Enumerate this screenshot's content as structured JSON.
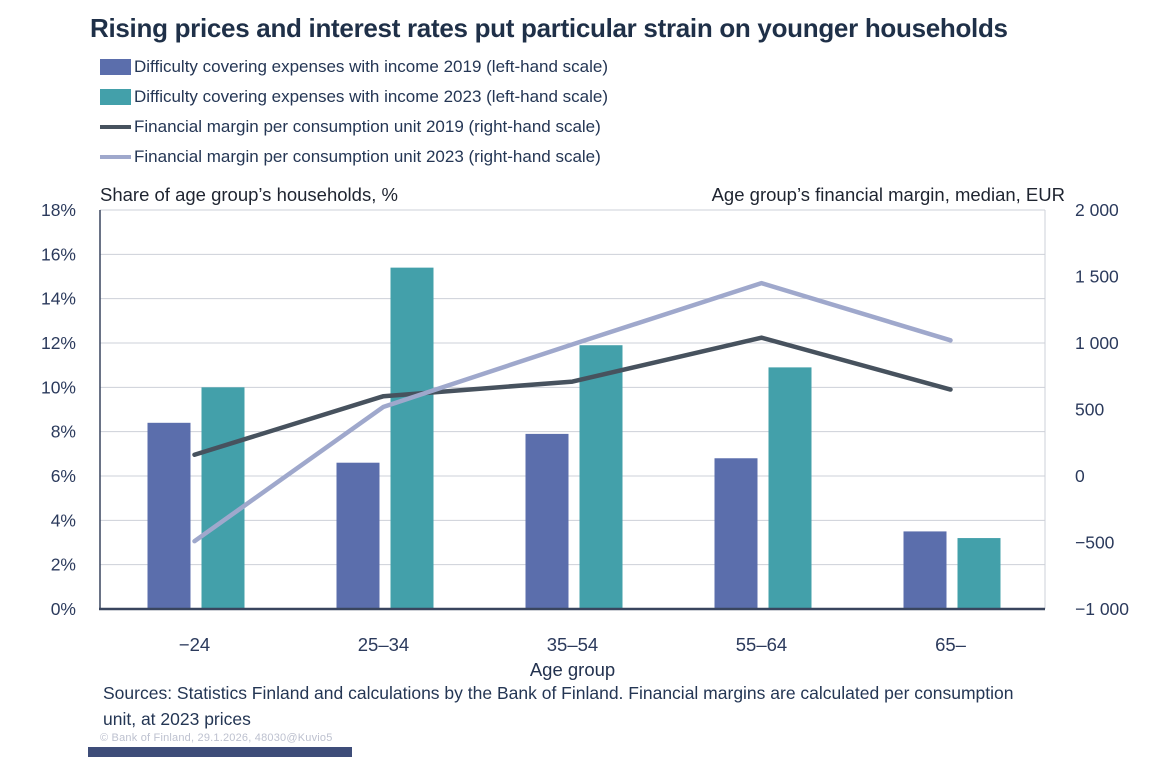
{
  "title": "Rising prices and interest rates put particular strain on younger households",
  "legend": [
    {
      "label": "Difficulty covering expenses with income 2019 (left-hand scale)",
      "swatch": "bar",
      "color": "#5B6EAC"
    },
    {
      "label": "Difficulty covering expenses with income 2023 (left-hand scale)",
      "swatch": "bar",
      "color": "#43A0AA"
    },
    {
      "label": "Financial margin per consumption unit 2019 (right-hand scale)",
      "swatch": "line",
      "color": "#47525E"
    },
    {
      "label": "Financial margin per consumption unit 2023 (right-hand scale)",
      "swatch": "line",
      "color": "#9FA8CC"
    }
  ],
  "chart_data": {
    "type": "combo-bar-line",
    "title": "Rising prices and interest rates put particular strain on younger households",
    "categories": [
      "−24",
      "25–34",
      "35–54",
      "55–64",
      "65–"
    ],
    "xlabel": "Age group",
    "grid": true,
    "legend_position": "top-left",
    "left_axis": {
      "label": "Share of age group’s households, %",
      "min": 0,
      "max": 18,
      "ticks": [
        {
          "label": "18%",
          "value": 18
        },
        {
          "label": "16%",
          "value": 16
        },
        {
          "label": "14%",
          "value": 14
        },
        {
          "label": "12%",
          "value": 12
        },
        {
          "label": "10%",
          "value": 10
        },
        {
          "label": "8%",
          "value": 8
        },
        {
          "label": "6%",
          "value": 6
        },
        {
          "label": "4%",
          "value": 4
        },
        {
          "label": "2%",
          "value": 2
        },
        {
          "label": "0%",
          "value": 0
        }
      ]
    },
    "right_axis": {
      "label": "Age group’s financial margin, median, EUR",
      "min": -1000,
      "max": 2000,
      "ticks": [
        {
          "label": "2 000",
          "value": 2000
        },
        {
          "label": "1 500",
          "value": 1500
        },
        {
          "label": "1 000",
          "value": 1000
        },
        {
          "label": "500",
          "value": 500
        },
        {
          "label": "0",
          "value": 0
        },
        {
          "label": "−500",
          "value": -500
        },
        {
          "label": "−1 000",
          "value": -1000
        }
      ]
    },
    "series": [
      {
        "name": "Difficulty covering expenses with income 2019",
        "type": "bar",
        "axis": "left",
        "color": "#5B6EAC",
        "values": [
          8.4,
          6.6,
          7.9,
          6.8,
          3.5
        ]
      },
      {
        "name": "Difficulty covering expenses with income 2023",
        "type": "bar",
        "axis": "left",
        "color": "#43A0AA",
        "values": [
          10.0,
          15.4,
          11.9,
          10.9,
          3.2
        ]
      },
      {
        "name": "Financial margin per consumption unit 2019",
        "type": "line",
        "axis": "right",
        "color": "#47525E",
        "values": [
          160,
          600,
          710,
          1040,
          650
        ]
      },
      {
        "name": "Financial margin per consumption unit 2023",
        "type": "line",
        "axis": "right",
        "color": "#9FA8CC",
        "values": [
          -490,
          520,
          990,
          1450,
          1020
        ]
      }
    ]
  },
  "footer": {
    "sources": "Sources: Statistics Finland and calculations by the Bank of Finland. Financial margins are calculated per consumption unit, at 2023 prices",
    "copyright": "© Bank of Finland, 29.1.2026, 48030@Kuvio5"
  },
  "colors": {
    "title": "#1F3048",
    "gridline": "#CDD0D8",
    "axisline": "#39455E",
    "tick_label": "#2B3A5C",
    "legend_text": "#243654",
    "brand_bar": "#3E4D79"
  }
}
